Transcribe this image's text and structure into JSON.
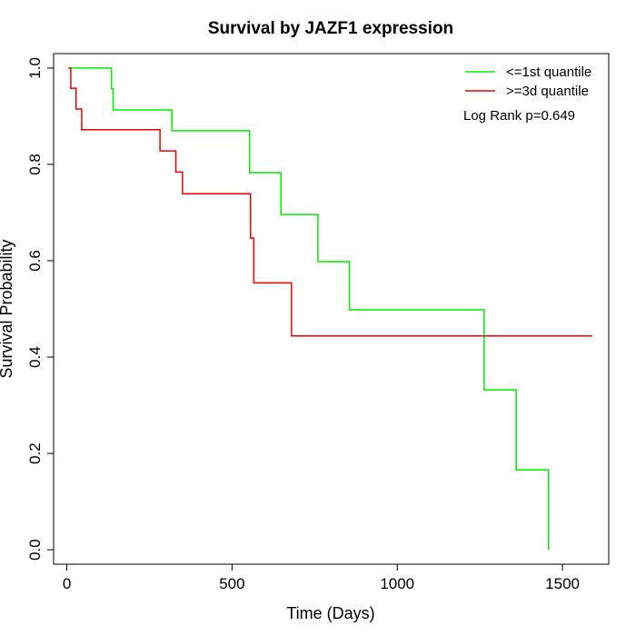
{
  "chart_data": {
    "type": "line",
    "title": "Survival by JAZF1 expression",
    "xlabel": "Time (Days)",
    "ylabel": "Survival Probability",
    "xlim": [
      -40,
      1640
    ],
    "ylim": [
      -0.03,
      1.03
    ],
    "x_ticks": [
      0,
      500,
      1000,
      1500
    ],
    "y_ticks": [
      0.0,
      0.2,
      0.4,
      0.6,
      0.8,
      1.0
    ],
    "x_tick_labels": [
      "0",
      "500",
      "1000",
      "1500"
    ],
    "y_tick_labels": [
      "0.0",
      "0.2",
      "0.4",
      "0.6",
      "0.8",
      "1.0"
    ],
    "grid": false,
    "legend_position": "top-right",
    "annotation": "Log Rank p=0.649",
    "series": [
      {
        "name": "<=1st quantile",
        "color": "#00ee00",
        "steps": [
          [
            5,
            1.0
          ],
          [
            135,
            0.957
          ],
          [
            140,
            0.913
          ],
          [
            318,
            0.87
          ],
          [
            553,
            0.783
          ],
          [
            648,
            0.696
          ],
          [
            760,
            0.598
          ],
          [
            855,
            0.498
          ],
          [
            1263,
            0.332
          ],
          [
            1360,
            0.166
          ],
          [
            1458,
            0.0
          ]
        ]
      },
      {
        "name": ">=3d quantile",
        "color": "#ee0000",
        "steps": [
          [
            5,
            1.0
          ],
          [
            12,
            0.958
          ],
          [
            28,
            0.915
          ],
          [
            45,
            0.872
          ],
          [
            282,
            0.828
          ],
          [
            330,
            0.784
          ],
          [
            350,
            0.739
          ],
          [
            556,
            0.647
          ],
          [
            566,
            0.554
          ],
          [
            680,
            0.444
          ],
          [
            1590,
            0.444
          ]
        ]
      }
    ]
  }
}
